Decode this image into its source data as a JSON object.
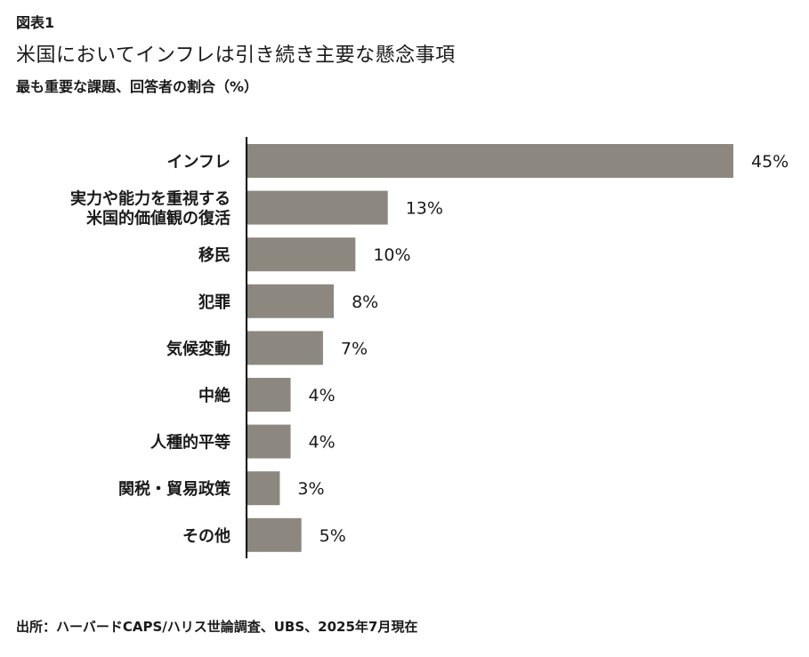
{
  "figure_label": "図表1",
  "title": "米国においてインフレは引き続き主要な懸念事項",
  "subtitle": "最も重要な課題、回答者の割合（%）",
  "source": "出所：ハーバードCAPS/ハリス世論調査、UBS、2025年7月現在",
  "colors": {
    "bar": "#8c8880",
    "axis": "#000000",
    "text": "#1a1a1a"
  },
  "chart_data": {
    "type": "bar",
    "orientation": "horizontal",
    "categories": [
      [
        "インフレ"
      ],
      [
        "実力や能力を重視する",
        "米国的価値観の復活"
      ],
      [
        "移民"
      ],
      [
        "犯罪"
      ],
      [
        "気候変動"
      ],
      [
        "中絶"
      ],
      [
        "人種的平等"
      ],
      [
        "関税・貿易政策"
      ],
      [
        "その他"
      ]
    ],
    "values": [
      45,
      13,
      10,
      8,
      7,
      4,
      4,
      3,
      5
    ],
    "data_labels": [
      "45%",
      "13%",
      "10%",
      "8%",
      "7%",
      "4%",
      "4%",
      "3%",
      "5%"
    ],
    "xlim": [
      0,
      45
    ],
    "grid": false,
    "legend": "none"
  }
}
